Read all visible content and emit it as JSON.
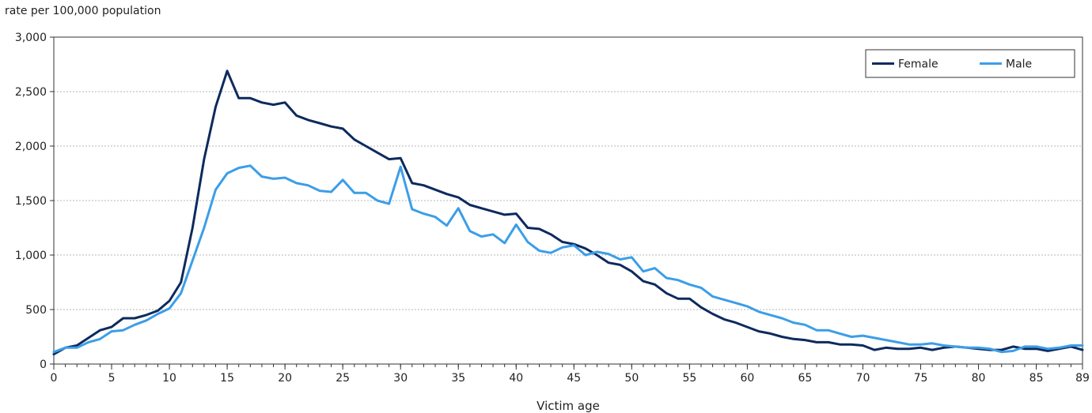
{
  "chart_data": {
    "type": "line",
    "title": "",
    "ylabel": "rate per 100,000 population",
    "xlabel": "Victim age",
    "ylim": [
      0,
      3000
    ],
    "xlim": [
      0,
      89
    ],
    "y_ticks": [
      0,
      500,
      1000,
      1500,
      2000,
      2500,
      3000
    ],
    "y_tick_labels": [
      "0",
      "500",
      "1,000",
      "1,500",
      "2,000",
      "2,500",
      "3,000"
    ],
    "x_ticks": [
      0,
      5,
      10,
      15,
      20,
      25,
      30,
      35,
      40,
      45,
      50,
      55,
      60,
      65,
      70,
      75,
      80,
      85,
      89
    ],
    "x_tick_labels": [
      "0",
      "5",
      "10",
      "15",
      "20",
      "25",
      "30",
      "35",
      "40",
      "45",
      "50",
      "55",
      "60",
      "65",
      "70",
      "75",
      "80",
      "85",
      "89"
    ],
    "grid": "horizontal",
    "legend_position": "top-right",
    "x": [
      0,
      1,
      2,
      3,
      4,
      5,
      6,
      7,
      8,
      9,
      10,
      11,
      12,
      13,
      14,
      15,
      16,
      17,
      18,
      19,
      20,
      21,
      22,
      23,
      24,
      25,
      26,
      27,
      28,
      29,
      30,
      31,
      32,
      33,
      34,
      35,
      36,
      37,
      38,
      39,
      40,
      41,
      42,
      43,
      44,
      45,
      46,
      47,
      48,
      49,
      50,
      51,
      52,
      53,
      54,
      55,
      56,
      57,
      58,
      59,
      60,
      61,
      62,
      63,
      64,
      65,
      66,
      67,
      68,
      69,
      70,
      71,
      72,
      73,
      74,
      75,
      76,
      77,
      78,
      79,
      80,
      81,
      82,
      83,
      84,
      85,
      86,
      87,
      88,
      89
    ],
    "series": [
      {
        "name": "Female",
        "color": "#0d2a5e",
        "values": [
          90,
          150,
          170,
          240,
          310,
          340,
          420,
          420,
          450,
          490,
          580,
          750,
          1250,
          1880,
          2360,
          2690,
          2440,
          2440,
          2400,
          2380,
          2400,
          2280,
          2240,
          2210,
          2180,
          2160,
          2060,
          2000,
          1940,
          1880,
          1890,
          1660,
          1640,
          1600,
          1560,
          1530,
          1460,
          1430,
          1400,
          1370,
          1380,
          1250,
          1240,
          1190,
          1120,
          1100,
          1060,
          1000,
          930,
          910,
          850,
          760,
          730,
          650,
          600,
          600,
          520,
          460,
          410,
          380,
          340,
          300,
          280,
          250,
          230,
          220,
          200,
          200,
          180,
          180,
          170,
          130,
          150,
          140,
          140,
          150,
          130,
          150,
          160,
          150,
          140,
          130,
          130,
          160,
          140,
          140,
          120,
          140,
          160,
          130
        ]
      },
      {
        "name": "Male",
        "color": "#3b9ee8",
        "values": [
          110,
          150,
          150,
          200,
          230,
          300,
          310,
          360,
          400,
          460,
          510,
          650,
          950,
          1250,
          1600,
          1750,
          1800,
          1820,
          1720,
          1700,
          1710,
          1660,
          1640,
          1590,
          1580,
          1690,
          1570,
          1570,
          1500,
          1470,
          1810,
          1420,
          1380,
          1350,
          1270,
          1430,
          1220,
          1170,
          1190,
          1110,
          1280,
          1120,
          1040,
          1020,
          1070,
          1090,
          1000,
          1030,
          1010,
          960,
          980,
          850,
          880,
          790,
          770,
          730,
          700,
          620,
          590,
          560,
          530,
          480,
          450,
          420,
          380,
          360,
          310,
          310,
          280,
          250,
          260,
          240,
          220,
          200,
          180,
          180,
          190,
          170,
          160,
          150,
          150,
          140,
          110,
          120,
          160,
          160,
          140,
          150,
          170,
          170
        ]
      }
    ]
  }
}
